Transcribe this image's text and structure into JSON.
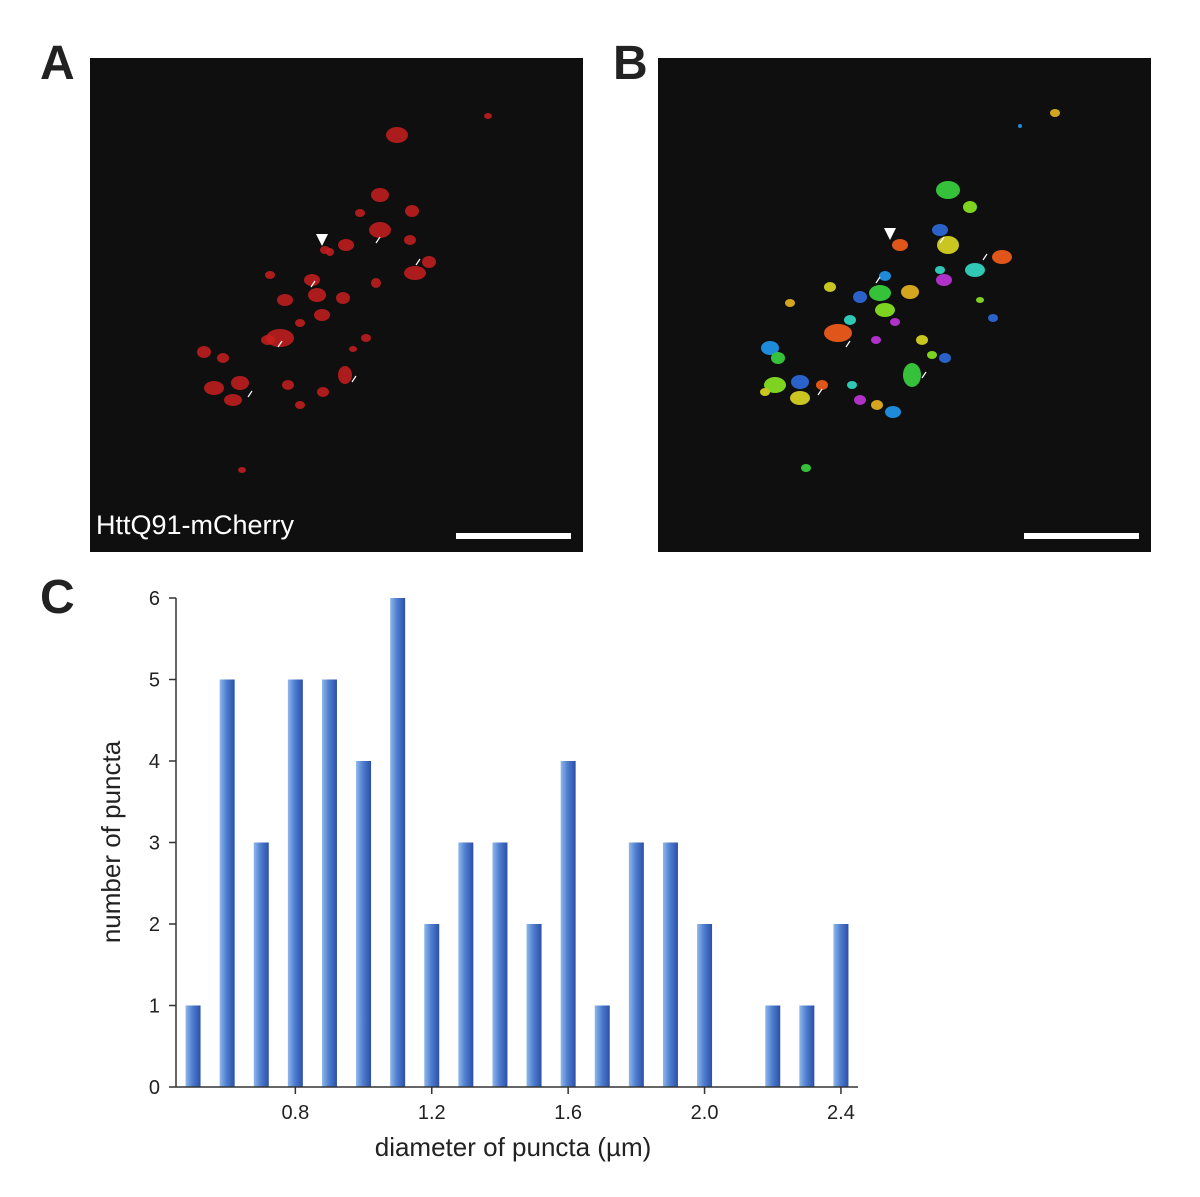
{
  "panels": {
    "a": {
      "letter": "A",
      "label": "HttQ91-mCherry"
    },
    "b": {
      "letter": "B"
    },
    "c": {
      "letter": "C"
    }
  },
  "colors": {
    "bar_light": "#6fa0e0",
    "bar_dark": "#2c4fa8",
    "puncta_red": "#d02020",
    "background_dark": "#0f0f0f"
  },
  "chart_data": {
    "type": "bar",
    "xlabel": "diameter of puncta (µm)",
    "ylabel": "number of puncta",
    "x": [
      0.5,
      0.6,
      0.7,
      0.8,
      0.9,
      1.0,
      1.1,
      1.2,
      1.3,
      1.4,
      1.5,
      1.6,
      1.7,
      1.8,
      1.9,
      2.0,
      2.1,
      2.2,
      2.3,
      2.4
    ],
    "values": [
      1,
      5,
      3,
      5,
      5,
      4,
      6,
      2,
      3,
      3,
      2,
      4,
      1,
      3,
      3,
      2,
      0,
      1,
      1,
      2
    ],
    "xlim": [
      0.45,
      2.45
    ],
    "ylim": [
      0,
      6
    ],
    "xticks": [
      0.8,
      1.2,
      1.6,
      2.0,
      2.4
    ],
    "xtick_labels": [
      "0.8",
      "1.2",
      "1.6",
      "2.0",
      "2.4"
    ],
    "yticks": [
      0,
      1,
      2,
      3,
      4,
      5,
      6
    ],
    "ytick_labels": [
      "0",
      "1",
      "2",
      "3",
      "4",
      "5",
      "6"
    ],
    "grid": false,
    "legend": "none"
  }
}
